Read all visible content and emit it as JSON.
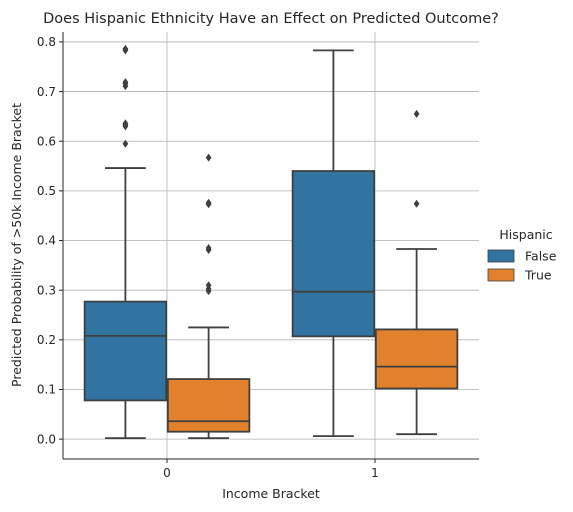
{
  "chart_data": {
    "type": "boxplot",
    "title": "Does Hispanic Ethnicity Have an Effect on Predicted Outcome?",
    "xlabel": "Income Bracket",
    "ylabel": "Predicted Probability of >50k Income Bracket",
    "categories": [
      "0",
      "1"
    ],
    "ylim": [
      -0.04,
      0.82
    ],
    "yticks": [
      0.0,
      0.1,
      0.2,
      0.3,
      0.4,
      0.5,
      0.6,
      0.7,
      0.8
    ],
    "ytick_labels": [
      "0.0",
      "0.1",
      "0.2",
      "0.3",
      "0.4",
      "0.5",
      "0.6",
      "0.7",
      "0.8"
    ],
    "grid": true,
    "legend": {
      "title": "Hispanic",
      "position": "right"
    },
    "series": [
      {
        "name": "False",
        "color": "#3274a1",
        "boxes": [
          {
            "category": "0",
            "whisker_low": 0.002,
            "q1": 0.078,
            "median": 0.208,
            "q3": 0.277,
            "whisker_high": 0.546,
            "outliers": [
              0.595,
              0.63,
              0.633,
              0.636,
              0.711,
              0.716,
              0.719,
              0.783,
              0.786
            ]
          },
          {
            "category": "1",
            "whisker_low": 0.006,
            "q1": 0.207,
            "median": 0.297,
            "q3": 0.54,
            "whisker_high": 0.783,
            "outliers": []
          }
        ]
      },
      {
        "name": "True",
        "color": "#e1812c",
        "boxes": [
          {
            "category": "0",
            "whisker_low": 0.002,
            "q1": 0.015,
            "median": 0.036,
            "q3": 0.121,
            "whisker_high": 0.225,
            "outliers": [
              0.298,
              0.303,
              0.31,
              0.381,
              0.385,
              0.473,
              0.476,
              0.567
            ]
          },
          {
            "category": "1",
            "whisker_low": 0.01,
            "q1": 0.102,
            "median": 0.146,
            "q3": 0.221,
            "whisker_high": 0.383,
            "outliers": [
              0.474,
              0.655
            ]
          }
        ]
      }
    ]
  }
}
